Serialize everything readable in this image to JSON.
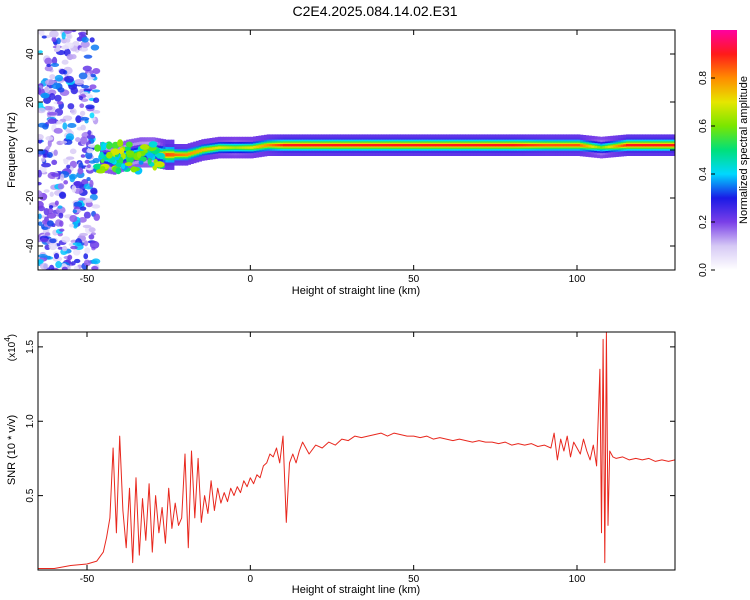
{
  "figure": {
    "title": "C2E4.2025.084.14.02.E31"
  },
  "chart_data": [
    {
      "type": "heatmap",
      "title": "C2E4.2025.084.14.02.E31",
      "xlabel": "Height of straight line (km)",
      "ylabel": "Frequency (Hz)",
      "xlim": [
        -65,
        130
      ],
      "ylim": [
        -50,
        50
      ],
      "xticks": [
        -50,
        0,
        50,
        100
      ],
      "yticks": [
        40,
        20,
        0,
        -20,
        -40
      ],
      "colorbar": {
        "label": "Normalized spectral amplitude",
        "range": [
          0,
          1
        ],
        "ticks": [
          0.0,
          0.2,
          0.4,
          0.6,
          0.8
        ],
        "colors": [
          "#ffffff",
          "#d6c9f5",
          "#7a3fe8",
          "#1a1ae6",
          "#00d8ff",
          "#00e07a",
          "#7ae600",
          "#e6e600",
          "#ff8c00",
          "#ff1a1a",
          "#ff00a0"
        ]
      },
      "ridge": [
        {
          "x": -46,
          "freq": -3,
          "amp": 0.45
        },
        {
          "x": -42,
          "freq": -4,
          "amp": 0.55
        },
        {
          "x": -38,
          "freq": -2,
          "amp": 0.5
        },
        {
          "x": -34,
          "freq": -1,
          "amp": 0.5
        },
        {
          "x": -30,
          "freq": -1,
          "amp": 0.45
        },
        {
          "x": -26,
          "freq": -2,
          "amp": 0.85
        },
        {
          "x": -20,
          "freq": -2,
          "amp": 0.8
        },
        {
          "x": -15,
          "freq": 0,
          "amp": 0.75
        },
        {
          "x": -10,
          "freq": 1,
          "amp": 0.7
        },
        {
          "x": -5,
          "freq": 1,
          "amp": 0.65
        },
        {
          "x": 0,
          "freq": 1,
          "amp": 0.7
        },
        {
          "x": 5,
          "freq": 2,
          "amp": 0.8
        },
        {
          "x": 10,
          "freq": 2,
          "amp": 0.9
        },
        {
          "x": 20,
          "freq": 2,
          "amp": 0.9
        },
        {
          "x": 30,
          "freq": 2,
          "amp": 0.9
        },
        {
          "x": 40,
          "freq": 2,
          "amp": 0.9
        },
        {
          "x": 50,
          "freq": 2,
          "amp": 0.9
        },
        {
          "x": 60,
          "freq": 2,
          "amp": 0.9
        },
        {
          "x": 70,
          "freq": 2,
          "amp": 0.9
        },
        {
          "x": 80,
          "freq": 2,
          "amp": 0.9
        },
        {
          "x": 90,
          "freq": 2,
          "amp": 0.85
        },
        {
          "x": 100,
          "freq": 2,
          "amp": 0.85
        },
        {
          "x": 107,
          "freq": 1,
          "amp": 0.6
        },
        {
          "x": 115,
          "freq": 2,
          "amp": 0.9
        },
        {
          "x": 130,
          "freq": 2,
          "amp": 0.9
        }
      ]
    },
    {
      "type": "line",
      "xlabel": "Height of straight line (km)",
      "ylabel": "SNR (10 * v/v)",
      "y_multiplier": "(x10",
      "y_multiplier_exp": "4",
      "y_multiplier_close": ")",
      "xlim": [
        -65,
        130
      ],
      "ylim": [
        0,
        1.6
      ],
      "xticks": [
        -50,
        0,
        50,
        100
      ],
      "yticks": [
        0.5,
        1.0,
        1.5
      ],
      "color": "#e8281e",
      "x": [
        -65,
        -60,
        -55,
        -50,
        -47,
        -45,
        -44,
        -43,
        -42,
        -41,
        -40,
        -39,
        -38,
        -37,
        -36,
        -35,
        -34,
        -33,
        -32,
        -31,
        -30,
        -29,
        -28,
        -27,
        -26,
        -25,
        -24,
        -23,
        -22,
        -21,
        -20,
        -19,
        -18,
        -17,
        -16,
        -15,
        -14,
        -13,
        -12,
        -11,
        -10,
        -9,
        -8,
        -7,
        -6,
        -5,
        -4,
        -3,
        -2,
        -1,
        0,
        1,
        2,
        3,
        4,
        5,
        6,
        7,
        8,
        9,
        10,
        11,
        12,
        13,
        14,
        15,
        16,
        18,
        20,
        22,
        24,
        26,
        28,
        30,
        32,
        34,
        36,
        38,
        40,
        42,
        44,
        46,
        48,
        50,
        52,
        54,
        56,
        58,
        60,
        62,
        64,
        66,
        68,
        70,
        72,
        74,
        76,
        78,
        80,
        82,
        84,
        86,
        88,
        90,
        92,
        93,
        94,
        95,
        96,
        97,
        98,
        99,
        100,
        101,
        102,
        103,
        104,
        105,
        106,
        107,
        107.5,
        108,
        108.5,
        109,
        109.5,
        110,
        111,
        112,
        114,
        116,
        118,
        120,
        122,
        124,
        126,
        128,
        130
      ],
      "y": [
        0.01,
        0.01,
        0.03,
        0.04,
        0.06,
        0.12,
        0.22,
        0.35,
        0.82,
        0.25,
        0.9,
        0.4,
        0.15,
        0.55,
        0.05,
        0.62,
        0.1,
        0.48,
        0.2,
        0.58,
        0.12,
        0.5,
        0.25,
        0.42,
        0.18,
        0.55,
        0.28,
        0.45,
        0.3,
        0.35,
        0.78,
        0.15,
        0.8,
        0.35,
        0.75,
        0.32,
        0.5,
        0.38,
        0.6,
        0.4,
        0.55,
        0.45,
        0.52,
        0.46,
        0.55,
        0.5,
        0.56,
        0.52,
        0.6,
        0.56,
        0.62,
        0.58,
        0.64,
        0.62,
        0.7,
        0.72,
        0.78,
        0.76,
        0.82,
        0.72,
        0.9,
        0.32,
        0.72,
        0.78,
        0.72,
        0.8,
        0.86,
        0.78,
        0.84,
        0.82,
        0.86,
        0.84,
        0.88,
        0.87,
        0.9,
        0.89,
        0.9,
        0.91,
        0.92,
        0.9,
        0.92,
        0.91,
        0.9,
        0.9,
        0.89,
        0.9,
        0.88,
        0.89,
        0.88,
        0.87,
        0.88,
        0.87,
        0.86,
        0.87,
        0.86,
        0.86,
        0.85,
        0.86,
        0.84,
        0.85,
        0.84,
        0.85,
        0.83,
        0.84,
        0.82,
        0.92,
        0.74,
        0.88,
        0.8,
        0.9,
        0.76,
        0.86,
        0.82,
        0.78,
        0.88,
        0.8,
        0.74,
        0.84,
        0.7,
        1.35,
        0.25,
        1.55,
        0.05,
        1.6,
        0.3,
        0.8,
        0.76,
        0.75,
        0.76,
        0.74,
        0.75,
        0.74,
        0.75,
        0.73,
        0.74,
        0.73,
        0.74
      ]
    }
  ]
}
